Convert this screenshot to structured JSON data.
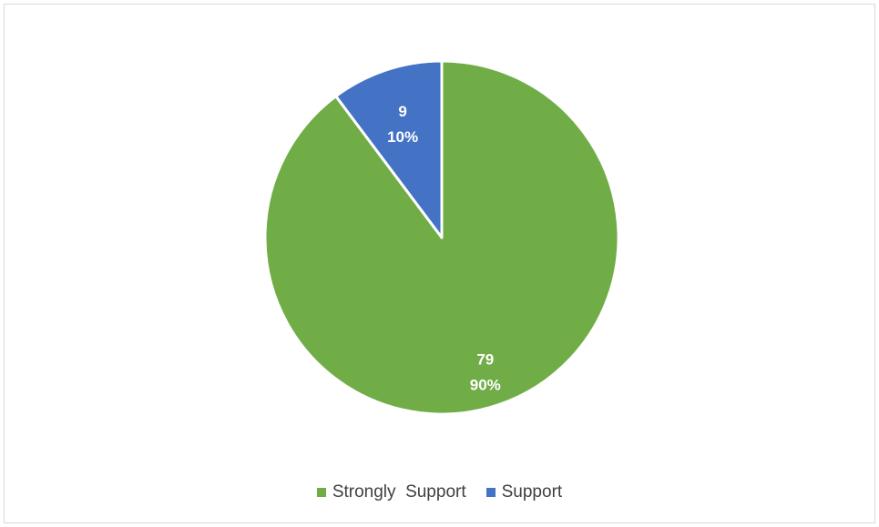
{
  "chart_data": {
    "type": "pie",
    "title": "",
    "slices": [
      {
        "name": "Strongly  Support",
        "value": 79,
        "percent": "90%",
        "color": "#70ad47"
      },
      {
        "name": "Support",
        "value": 9,
        "percent": "10%",
        "color": "#4472c4"
      }
    ],
    "start_angle_deg": 0,
    "direction": "clockwise",
    "legend_position": "bottom",
    "data_labels": [
      "79",
      "90%",
      "9",
      "10%"
    ]
  },
  "legend": {
    "items": [
      {
        "label": "Strongly  Support",
        "color": "#70ad47"
      },
      {
        "label": "Support",
        "color": "#4472c4"
      }
    ]
  }
}
